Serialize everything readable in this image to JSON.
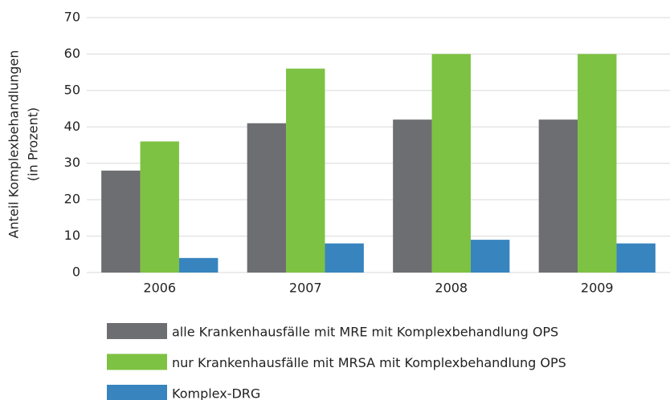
{
  "chart_data": {
    "type": "bar",
    "ylabel": [
      "Anteil Komplexbehandlungen",
      "(in Prozent)"
    ],
    "categories": [
      "2006",
      "2007",
      "2008",
      "2009"
    ],
    "series": [
      {
        "name": "alle Krankenhausfälle mit MRE mit Komplexbehandlung OPS",
        "color": "#6d6e71",
        "values": [
          28,
          41,
          42,
          42
        ]
      },
      {
        "name": "nur Krankenhausfälle mit MRSA mit Komplexbehandlung OPS",
        "color": "#7dc242",
        "values": [
          36,
          56,
          60,
          60
        ]
      },
      {
        "name": "Komplex-DRG",
        "color": "#3784bf",
        "values": [
          4,
          8,
          9,
          8
        ]
      }
    ],
    "ylim": [
      0,
      70
    ],
    "yticks": [
      0,
      10,
      20,
      30,
      40,
      50,
      60,
      70
    ],
    "grid": true
  }
}
